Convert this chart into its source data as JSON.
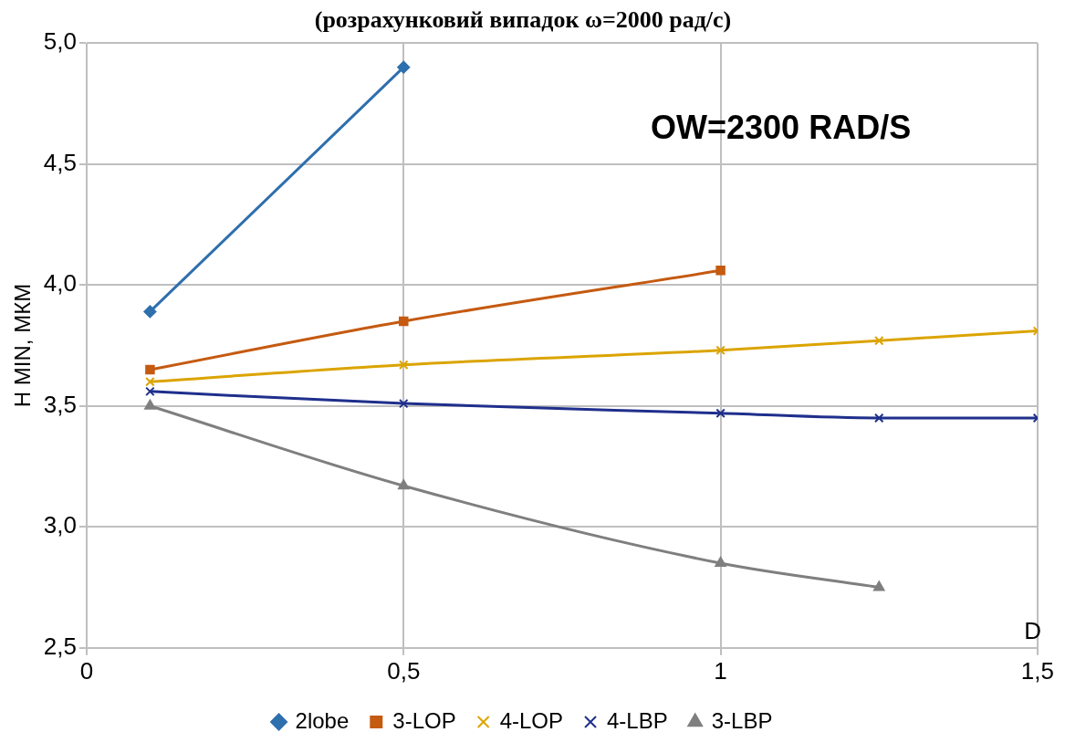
{
  "chart_data": {
    "type": "line",
    "title": "(розрахунковий випадок ω=2000 рад/с)",
    "xlabel": "D",
    "ylabel": "H MIN, МКМ",
    "annotations": [
      "OW=2300 RAD/S"
    ],
    "x": [
      0.1,
      0.5,
      1,
      1.25,
      1.5
    ],
    "series": [
      {
        "name": "2lobe",
        "color": "#2e6fad",
        "marker": "diamond",
        "values": [
          3.89,
          4.9,
          null,
          null,
          null
        ]
      },
      {
        "name": "3-LOP",
        "color": "#c55a11",
        "marker": "square",
        "values": [
          3.65,
          3.85,
          4.06,
          null,
          null
        ]
      },
      {
        "name": "4-LOP",
        "color": "#dba400",
        "marker": "cross",
        "values": [
          3.6,
          3.67,
          3.73,
          3.77,
          3.81
        ]
      },
      {
        "name": "4-LBP",
        "color": "#1f2f8c",
        "marker": "cross",
        "values": [
          3.56,
          3.51,
          3.47,
          3.45,
          3.45
        ]
      },
      {
        "name": "3-LBP",
        "color": "#7f7f7f",
        "marker": "triangle",
        "values": [
          3.5,
          3.17,
          2.85,
          2.75,
          null
        ]
      }
    ],
    "xlim": [
      0,
      1.5
    ],
    "xticks": [
      0,
      {
        "value": 0.5,
        "label": "0,5"
      },
      1,
      {
        "value": 1.5,
        "label": "1,5"
      }
    ],
    "ylim": [
      2.5,
      5
    ],
    "yticks": [
      {
        "value": 2.5,
        "label": "2,5"
      },
      {
        "value": 3,
        "label": "3,0"
      },
      {
        "value": 3.5,
        "label": "3,5"
      },
      {
        "value": 4,
        "label": "4,0"
      },
      {
        "value": 4.5,
        "label": "4,5"
      },
      {
        "value": 5,
        "label": "5,0"
      }
    ],
    "grid": true,
    "legend": "bottom"
  }
}
